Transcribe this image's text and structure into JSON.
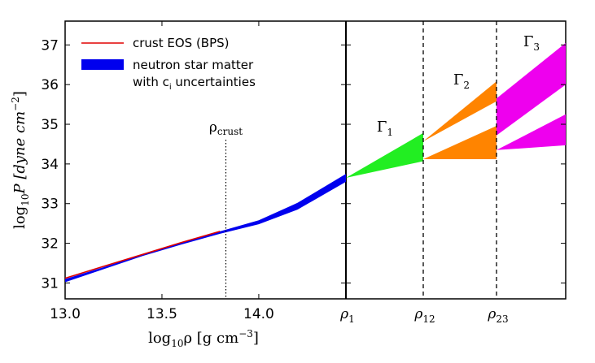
{
  "chart_data": {
    "type": "area",
    "title": "",
    "xlabel_prefix": "log",
    "xlabel_sub": "10",
    "xlabel_rest": "ρ [g cm",
    "xlabel_exp": "−3",
    "xlabel_close": "]",
    "ylabel_prefix": "log",
    "ylabel_sub": "10",
    "ylabel_rest": "P [dyne cm",
    "ylabel_exp": "−2",
    "ylabel_close": "]",
    "ylim": [
      30.6,
      37.6
    ],
    "yticks": [
      31,
      32,
      33,
      34,
      35,
      36,
      37
    ],
    "left_panel": {
      "xlim": [
        13.0,
        14.45
      ],
      "xticks": [
        13.0,
        13.5,
        14.0
      ],
      "crust_line_x": 13.83,
      "crust_label_main": "ρ",
      "crust_label_sub": "crust",
      "series": [
        {
          "name": "crust EOS (BPS)",
          "color": "#e00000",
          "kind": "line",
          "x": [
            13.0,
            13.2,
            13.4,
            13.6,
            13.8,
            14.0,
            14.2,
            14.4
          ],
          "y": [
            31.12,
            31.42,
            31.72,
            32.02,
            32.3,
            32.56,
            32.88,
            33.25
          ]
        },
        {
          "name": "neutron star matter with c_i uncertainties",
          "color": "#0000ee",
          "kind": "band",
          "x": [
            13.0,
            13.2,
            13.4,
            13.6,
            13.8,
            14.0,
            14.2,
            14.45
          ],
          "y_low": [
            31.02,
            31.35,
            31.68,
            31.97,
            32.24,
            32.48,
            32.85,
            33.55
          ],
          "y_high": [
            31.1,
            31.4,
            31.72,
            32.02,
            32.3,
            32.58,
            33.02,
            33.75
          ]
        }
      ]
    },
    "right_panel": {
      "xticks": [
        {
          "main": "ρ",
          "sub": "1"
        },
        {
          "main": "ρ",
          "sub": "12"
        },
        {
          "main": "ρ",
          "sub": "23"
        }
      ],
      "dashed_at": [
        1,
        2
      ],
      "regions": [
        {
          "name": "Γ",
          "sub": "1",
          "color": "#22ee22",
          "polygons": [
            [
              [
                0,
                33.65
              ],
              [
                1,
                34.78
              ],
              [
                1,
                34.07
              ]
            ]
          ]
        },
        {
          "name": "Γ",
          "sub": "2",
          "color": "#ff8400",
          "polygons": [
            [
              [
                1,
                34.57
              ],
              [
                2,
                36.08
              ],
              [
                2,
                35.58
              ]
            ],
            [
              [
                1,
                34.12
              ],
              [
                2,
                34.96
              ],
              [
                2,
                34.12
              ]
            ]
          ]
        },
        {
          "name": "Γ",
          "sub": "3",
          "color": "#ee00ee",
          "polygons": [
            [
              [
                2,
                35.65
              ],
              [
                3,
                37.05
              ],
              [
                3,
                36.0
              ],
              [
                2,
                34.72
              ]
            ],
            [
              [
                2,
                34.35
              ],
              [
                3,
                35.25
              ],
              [
                3,
                34.47
              ]
            ]
          ]
        }
      ]
    },
    "legend": {
      "placement": "top-left",
      "entries": [
        {
          "line1": "crust EOS (BPS)",
          "line2": ""
        },
        {
          "line1": "neutron star matter",
          "line2_pre": "with c",
          "line2_sub": "i",
          "line2_post": " uncertainties"
        }
      ]
    }
  }
}
